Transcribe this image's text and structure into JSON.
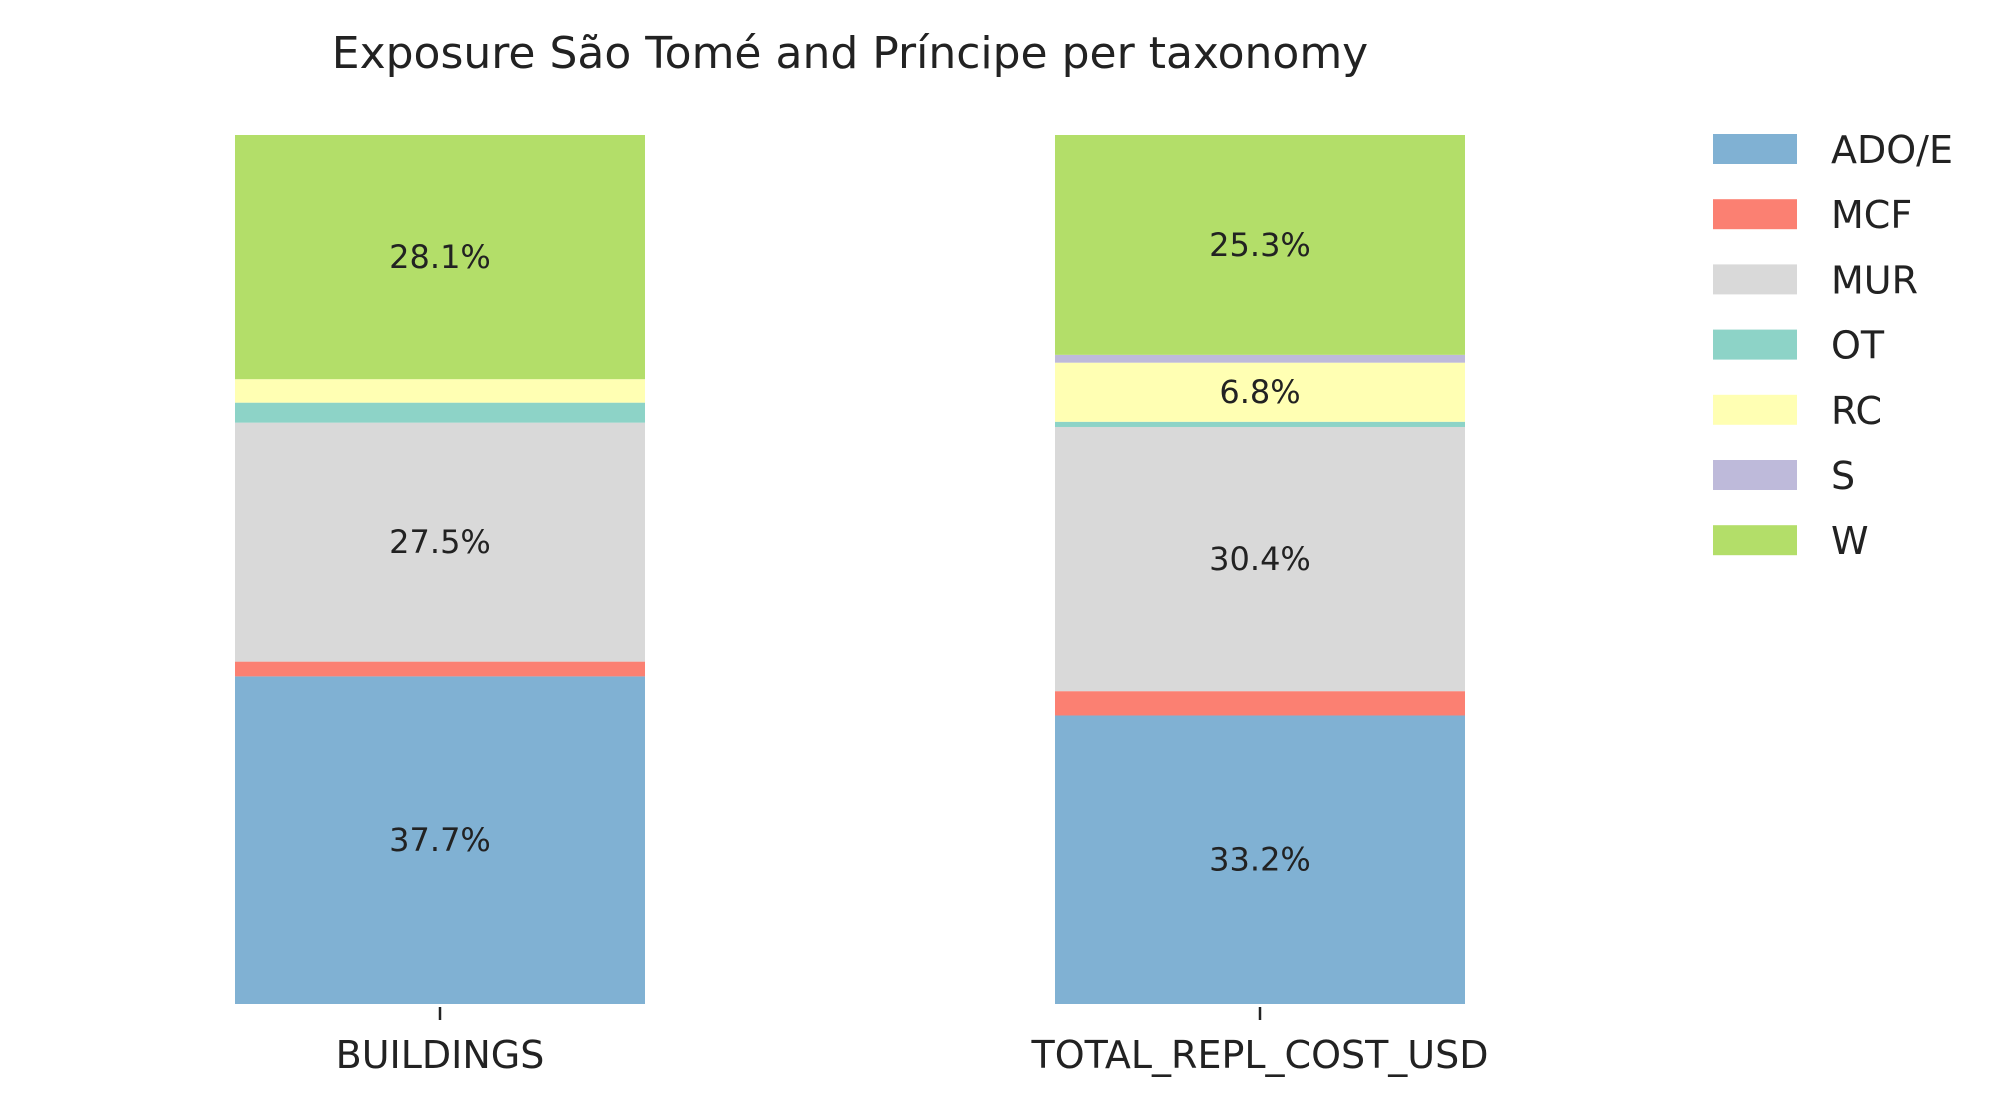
{
  "chart_data": {
    "type": "bar",
    "stacked": true,
    "percent_stacked": true,
    "title": "Exposure São Tomé and Príncipe per taxonomy",
    "categories": [
      "BUILDINGS",
      "TOTAL_REPL_COST_USD"
    ],
    "series": [
      {
        "name": "ADO/E",
        "color": "#80b1d3",
        "values": [
          37.7,
          33.2
        ]
      },
      {
        "name": "MCF",
        "color": "#fb8072",
        "values": [
          1.7,
          2.8
        ]
      },
      {
        "name": "MUR",
        "color": "#d9d9d9",
        "values": [
          27.5,
          30.4
        ]
      },
      {
        "name": "OT",
        "color": "#8dd3c7",
        "values": [
          2.3,
          0.6
        ]
      },
      {
        "name": "RC",
        "color": "#ffffb3",
        "values": [
          2.7,
          6.8
        ]
      },
      {
        "name": "S",
        "color": "#bebada",
        "values": [
          0.0,
          0.9
        ]
      },
      {
        "name": "W",
        "color": "#b3de69",
        "values": [
          28.1,
          25.3
        ]
      }
    ],
    "labels": [
      {
        "category": "BUILDINGS",
        "series": "ADO/E",
        "text": "37.7%"
      },
      {
        "category": "BUILDINGS",
        "series": "MUR",
        "text": "27.5%"
      },
      {
        "category": "BUILDINGS",
        "series": "W",
        "text": "28.1%"
      },
      {
        "category": "TOTAL_REPL_COST_USD",
        "series": "ADO/E",
        "text": "33.2%"
      },
      {
        "category": "TOTAL_REPL_COST_USD",
        "series": "MUR",
        "text": "30.4%"
      },
      {
        "category": "TOTAL_REPL_COST_USD",
        "series": "RC",
        "text": "6.8%"
      },
      {
        "category": "TOTAL_REPL_COST_USD",
        "series": "W",
        "text": "25.3%"
      }
    ],
    "xlabel": "",
    "ylabel": "",
    "ylim": [
      0,
      100
    ],
    "grid": false,
    "legend_position": "top-right"
  }
}
